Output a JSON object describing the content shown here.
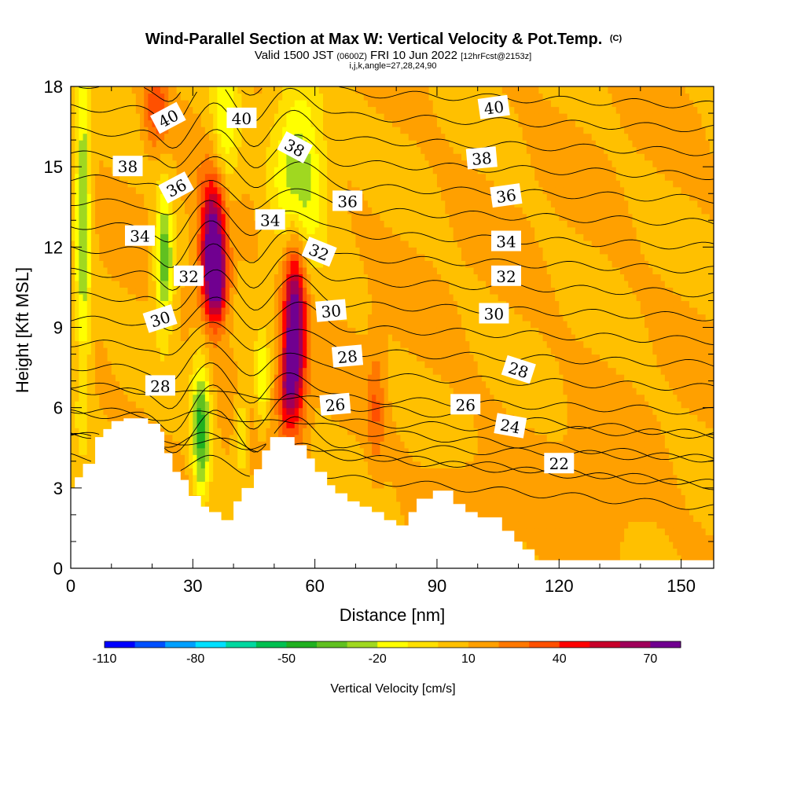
{
  "chart_data": {
    "type": "heatmap",
    "title": "Wind-Parallel Section at Max W: Vertical Velocity & Pot.Temp.",
    "title_mark": "(C)",
    "subtitle": {
      "part1": "Valid 1500 JST",
      "part2": "(0600Z)",
      "part3": "FRI 10 Jun 2022",
      "part4": "[12hrFcst@2153z]"
    },
    "subtitle2": "i,j,k,angle=27,28,24,90",
    "xlabel": "Distance [nm]",
    "ylabel": "Height [Kft MSL]",
    "xlim": [
      0,
      158
    ],
    "ylim": [
      0,
      18
    ],
    "x_ticks": [
      0,
      30,
      60,
      90,
      120,
      150
    ],
    "y_ticks": [
      0,
      3,
      6,
      9,
      12,
      15,
      18
    ],
    "colorbar": {
      "label": "Vertical Velocity [cm/s]",
      "min": -110,
      "max": 80,
      "step": 10,
      "tick_labels": [
        "-110",
        "-80",
        "-50",
        "-20",
        "10",
        "40",
        "70"
      ],
      "tick_values": [
        -110,
        -80,
        -50,
        -20,
        10,
        40,
        70
      ],
      "colors": [
        "#0000ff",
        "#0050ff",
        "#00a0ff",
        "#00e0ff",
        "#00d8a0",
        "#00c050",
        "#20b020",
        "#60c020",
        "#a0d820",
        "#ffff00",
        "#ffe000",
        "#ffc000",
        "#ffa000",
        "#ff7800",
        "#ff5000",
        "#ff0000",
        "#c8002a",
        "#a0005a",
        "#700090"
      ]
    },
    "terrain_kft": [
      [
        0,
        3.0
      ],
      [
        1,
        3.0
      ],
      [
        1,
        3.4
      ],
      [
        3,
        3.4
      ],
      [
        3,
        3.9
      ],
      [
        6,
        3.9
      ],
      [
        6,
        4.9
      ],
      [
        8,
        4.9
      ],
      [
        8,
        5.2
      ],
      [
        10,
        5.2
      ],
      [
        10,
        5.5
      ],
      [
        13,
        5.5
      ],
      [
        13,
        5.6
      ],
      [
        19,
        5.6
      ],
      [
        19,
        5.4
      ],
      [
        22,
        5.4
      ],
      [
        22,
        5.1
      ],
      [
        23,
        5.1
      ],
      [
        23,
        4.3
      ],
      [
        25,
        4.3
      ],
      [
        25,
        3.6
      ],
      [
        27,
        3.6
      ],
      [
        27,
        3.3
      ],
      [
        29,
        3.3
      ],
      [
        29,
        2.7
      ],
      [
        32,
        2.7
      ],
      [
        32,
        2.3
      ],
      [
        34,
        2.3
      ],
      [
        34,
        2.1
      ],
      [
        37,
        2.1
      ],
      [
        37,
        1.8
      ],
      [
        40,
        1.8
      ],
      [
        40,
        2.5
      ],
      [
        42,
        2.5
      ],
      [
        42,
        3.0
      ],
      [
        45,
        3.0
      ],
      [
        45,
        3.7
      ],
      [
        47,
        3.7
      ],
      [
        47,
        4.4
      ],
      [
        49,
        4.4
      ],
      [
        49,
        4.9
      ],
      [
        55,
        4.9
      ],
      [
        55,
        4.6
      ],
      [
        58,
        4.6
      ],
      [
        58,
        4.1
      ],
      [
        60,
        4.1
      ],
      [
        60,
        3.6
      ],
      [
        63,
        3.6
      ],
      [
        63,
        3.1
      ],
      [
        65,
        3.1
      ],
      [
        65,
        2.8
      ],
      [
        68,
        2.8
      ],
      [
        68,
        2.5
      ],
      [
        71,
        2.5
      ],
      [
        71,
        2.3
      ],
      [
        74,
        2.3
      ],
      [
        74,
        2.1
      ],
      [
        77,
        2.1
      ],
      [
        77,
        1.8
      ],
      [
        80,
        1.8
      ],
      [
        80,
        1.6
      ],
      [
        83,
        1.6
      ],
      [
        83,
        2.1
      ],
      [
        85,
        2.1
      ],
      [
        85,
        2.6
      ],
      [
        89,
        2.6
      ],
      [
        89,
        2.9
      ],
      [
        94,
        2.9
      ],
      [
        94,
        2.4
      ],
      [
        97,
        2.4
      ],
      [
        97,
        2.1
      ],
      [
        100,
        2.1
      ],
      [
        100,
        1.9
      ],
      [
        106,
        1.9
      ],
      [
        106,
        1.4
      ],
      [
        109,
        1.4
      ],
      [
        109,
        1.0
      ],
      [
        111,
        1.0
      ],
      [
        111,
        0.7
      ],
      [
        114,
        0.7
      ],
      [
        114,
        0.3
      ],
      [
        158,
        0.3
      ],
      [
        158,
        0
      ]
    ],
    "w_field_cm_s": {
      "background": 10,
      "features": [
        {
          "x": 35,
          "y": 12.0,
          "sx": 2.2,
          "sy": 1.8,
          "amp": 78
        },
        {
          "x": 36,
          "y": 10.6,
          "sx": 2.0,
          "sy": 0.9,
          "amp": 35
        },
        {
          "x": 55,
          "y": 9.0,
          "sx": 2.0,
          "sy": 2.4,
          "amp": 78
        },
        {
          "x": 53,
          "y": 6.6,
          "sx": 1.6,
          "sy": 1.0,
          "amp": 30
        },
        {
          "x": 21,
          "y": 17.2,
          "sx": 2.0,
          "sy": 1.0,
          "amp": 30
        },
        {
          "x": 75,
          "y": 6.0,
          "sx": 1.4,
          "sy": 1.6,
          "amp": 20
        },
        {
          "x": 32,
          "y": 5.2,
          "sx": 1.6,
          "sy": 1.8,
          "amp": -55
        },
        {
          "x": 23,
          "y": 11.5,
          "sx": 1.6,
          "sy": 1.8,
          "amp": -50
        },
        {
          "x": 3,
          "y": 13.0,
          "sx": 1.4,
          "sy": 4.5,
          "amp": -40
        },
        {
          "x": 56,
          "y": 15.0,
          "sx": 4.5,
          "sy": 2.5,
          "amp": -40
        },
        {
          "x": 38,
          "y": 16.5,
          "sx": 2.5,
          "sy": 2.0,
          "amp": -28
        },
        {
          "x": 47,
          "y": 7.0,
          "sx": 1.2,
          "sy": 1.2,
          "amp": -30
        },
        {
          "x": 42,
          "y": 5.0,
          "sx": 1.2,
          "sy": 1.0,
          "amp": -25
        },
        {
          "x": 128,
          "y": 2.0,
          "sx": 8.0,
          "sy": 1.8,
          "amp": 8
        },
        {
          "x": 98,
          "y": 2.4,
          "sx": 6.0,
          "sy": 1.0,
          "amp": 10
        }
      ]
    },
    "theta_contour_labels": [
      {
        "text": "40",
        "x": 24,
        "y": 16.8,
        "rot": -28
      },
      {
        "text": "40",
        "x": 42,
        "y": 16.8,
        "rot": 0
      },
      {
        "text": "40",
        "x": 104,
        "y": 17.2,
        "rot": -8
      },
      {
        "text": "38",
        "x": 14,
        "y": 15.0,
        "rot": 0
      },
      {
        "text": "38",
        "x": 55,
        "y": 15.7,
        "rot": 28
      },
      {
        "text": "38",
        "x": 101,
        "y": 15.3,
        "rot": -5
      },
      {
        "text": "36",
        "x": 26,
        "y": 14.2,
        "rot": -28
      },
      {
        "text": "36",
        "x": 68,
        "y": 13.7,
        "rot": 0
      },
      {
        "text": "36",
        "x": 107,
        "y": 13.9,
        "rot": -8
      },
      {
        "text": "34",
        "x": 17,
        "y": 12.4,
        "rot": 0
      },
      {
        "text": "34",
        "x": 49,
        "y": 13.0,
        "rot": 0
      },
      {
        "text": "34",
        "x": 107,
        "y": 12.2,
        "rot": 0
      },
      {
        "text": "32",
        "x": 29,
        "y": 10.9,
        "rot": 0
      },
      {
        "text": "32",
        "x": 61,
        "y": 11.8,
        "rot": 22
      },
      {
        "text": "32",
        "x": 107,
        "y": 10.9,
        "rot": 0
      },
      {
        "text": "30",
        "x": 22,
        "y": 9.3,
        "rot": -18
      },
      {
        "text": "30",
        "x": 64,
        "y": 9.6,
        "rot": -5
      },
      {
        "text": "30",
        "x": 104,
        "y": 9.5,
        "rot": 0
      },
      {
        "text": "28",
        "x": 22,
        "y": 6.8,
        "rot": 0
      },
      {
        "text": "28",
        "x": 68,
        "y": 7.9,
        "rot": -5
      },
      {
        "text": "28",
        "x": 110,
        "y": 7.4,
        "rot": 18
      },
      {
        "text": "26",
        "x": 65,
        "y": 6.1,
        "rot": -5
      },
      {
        "text": "26",
        "x": 97,
        "y": 6.1,
        "rot": 0
      },
      {
        "text": "24",
        "x": 108,
        "y": 5.3,
        "rot": 10
      },
      {
        "text": "22",
        "x": 120,
        "y": 3.9,
        "rot": 0
      }
    ]
  }
}
